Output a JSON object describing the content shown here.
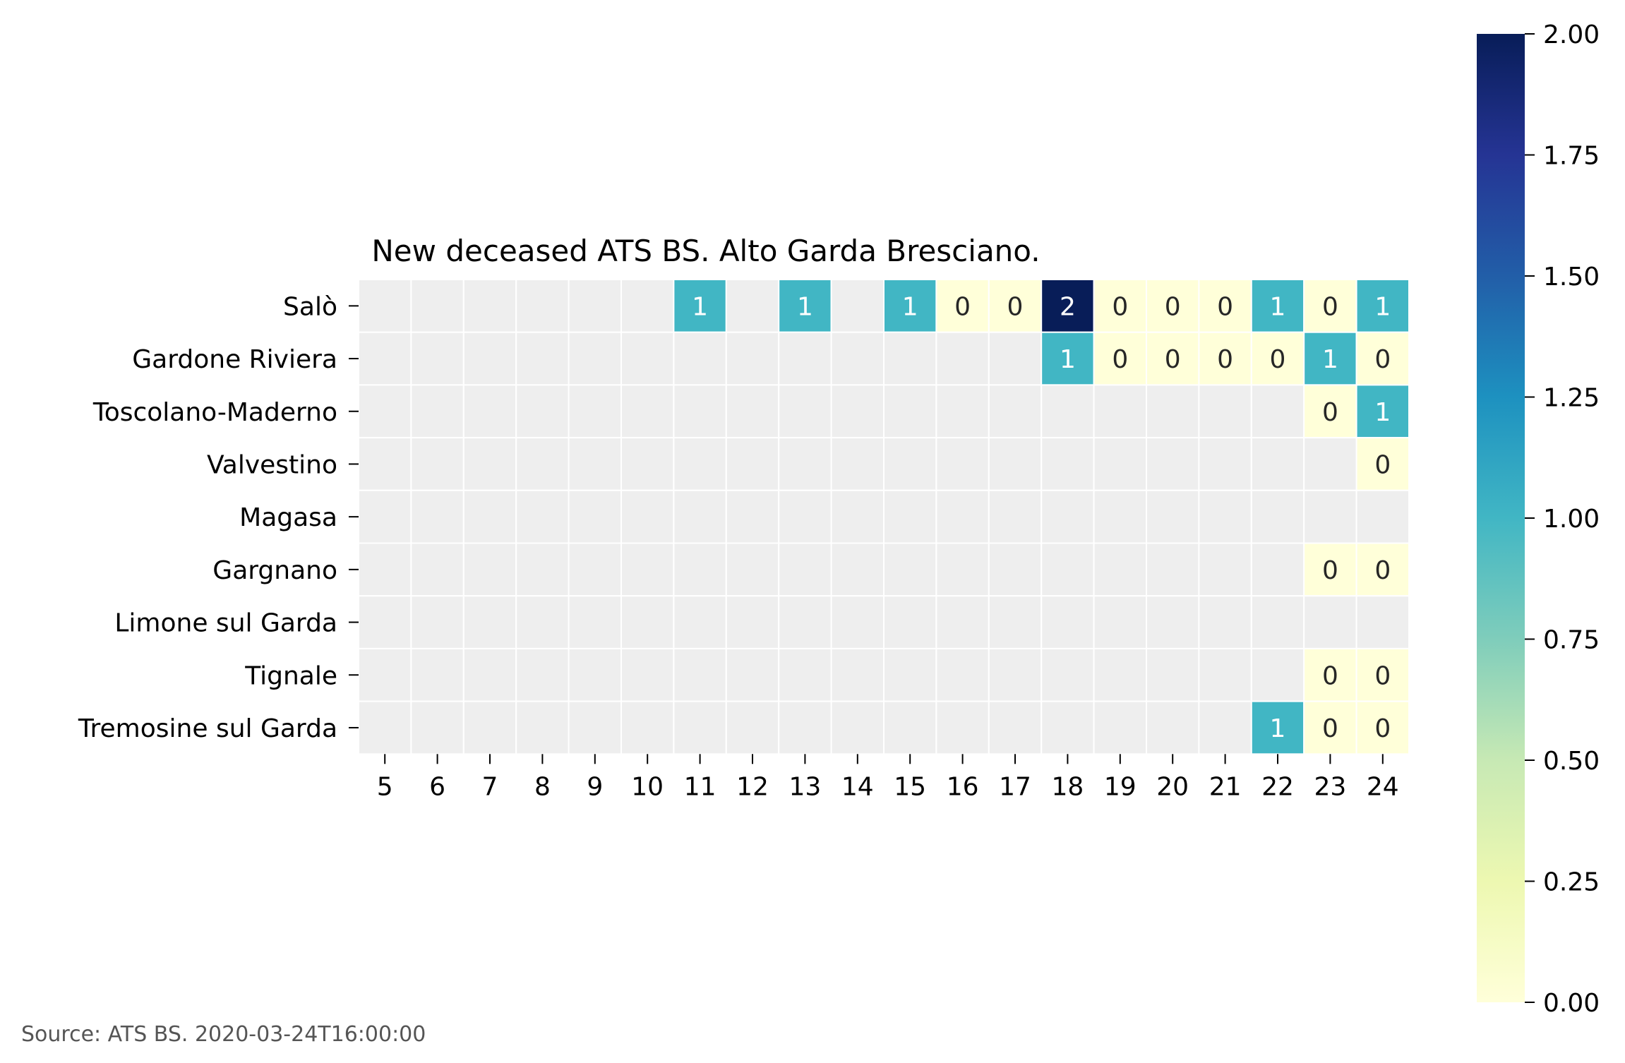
{
  "chart_data": {
    "type": "heatmap",
    "title": "New deceased ATS BS. Alto Garda Bresciano.",
    "x": [
      "5",
      "6",
      "7",
      "8",
      "9",
      "10",
      "11",
      "12",
      "13",
      "14",
      "15",
      "16",
      "17",
      "18",
      "19",
      "20",
      "21",
      "22",
      "23",
      "24"
    ],
    "y": [
      "Salò",
      "Gardone Riviera",
      "Toscolano-Maderno",
      "Valvestino",
      "Magasa",
      "Gargnano",
      "Limone sul Garda",
      "Tignale",
      "Tremosine sul Garda"
    ],
    "values": [
      [
        null,
        null,
        null,
        null,
        null,
        null,
        1,
        null,
        1,
        null,
        1,
        0,
        0,
        2,
        0,
        0,
        0,
        1,
        0,
        1
      ],
      [
        null,
        null,
        null,
        null,
        null,
        null,
        null,
        null,
        null,
        null,
        null,
        null,
        null,
        1,
        0,
        0,
        0,
        0,
        1,
        0
      ],
      [
        null,
        null,
        null,
        null,
        null,
        null,
        null,
        null,
        null,
        null,
        null,
        null,
        null,
        null,
        null,
        null,
        null,
        null,
        0,
        1
      ],
      [
        null,
        null,
        null,
        null,
        null,
        null,
        null,
        null,
        null,
        null,
        null,
        null,
        null,
        null,
        null,
        null,
        null,
        null,
        null,
        0
      ],
      [
        null,
        null,
        null,
        null,
        null,
        null,
        null,
        null,
        null,
        null,
        null,
        null,
        null,
        null,
        null,
        null,
        null,
        null,
        null,
        null
      ],
      [
        null,
        null,
        null,
        null,
        null,
        null,
        null,
        null,
        null,
        null,
        null,
        null,
        null,
        null,
        null,
        null,
        null,
        null,
        0,
        0
      ],
      [
        null,
        null,
        null,
        null,
        null,
        null,
        null,
        null,
        null,
        null,
        null,
        null,
        null,
        null,
        null,
        null,
        null,
        null,
        null,
        null
      ],
      [
        null,
        null,
        null,
        null,
        null,
        null,
        null,
        null,
        null,
        null,
        null,
        null,
        null,
        null,
        null,
        null,
        null,
        null,
        0,
        0
      ],
      [
        null,
        null,
        null,
        null,
        null,
        null,
        null,
        null,
        null,
        null,
        null,
        null,
        null,
        null,
        null,
        null,
        null,
        1,
        0,
        0
      ]
    ],
    "colorbar": {
      "range": [
        0,
        2
      ],
      "ticks": [
        "0.00",
        "0.25",
        "0.50",
        "0.75",
        "1.00",
        "1.25",
        "1.50",
        "1.75",
        "2.00"
      ],
      "colormap": "YlGnBu"
    },
    "missing_color": "#eeeeee",
    "annotated": true,
    "grid": false
  },
  "source": "Source: ATS BS. 2020-03-24T16:00:00"
}
